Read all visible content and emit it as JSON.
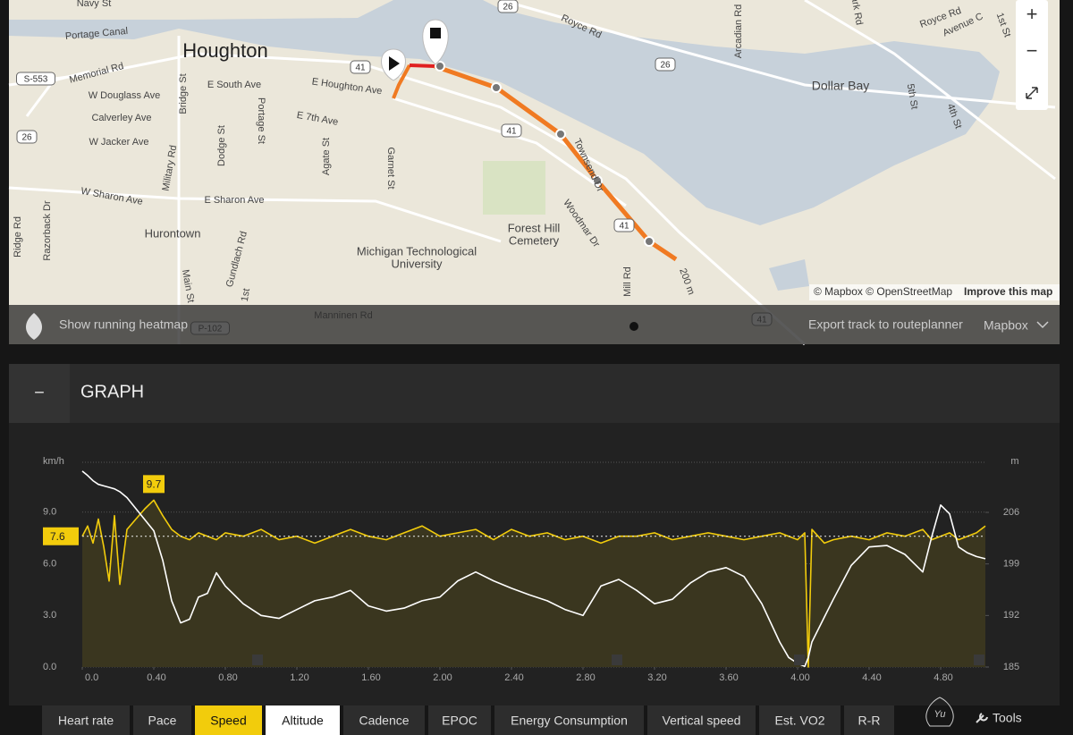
{
  "map": {
    "labels": [
      "Navy St",
      "Portage Canal",
      "Houghton",
      "Memorial Rd",
      "W Douglass Ave",
      "Calverley Ave",
      "W Jacker Ave",
      "W Sharon Ave",
      "E South Ave",
      "E Houghton Ave",
      "E 7th Ave",
      "E Sharon Ave",
      "Hurontown",
      "Military Rd",
      "Bridge St",
      "Dodge St",
      "Portage St",
      "Agate St",
      "Garnet St",
      "Gundlach Rd",
      "Main St",
      "1st",
      "Michigan Technological",
      "University",
      "Forest Hill",
      "Cemetery",
      "Manninen Rd",
      "Royce Rd",
      "Townsend Dr",
      "Woodmar Dr",
      "Mill Rd",
      "Arcadian Rd",
      "Dollar Bay",
      "5th St",
      "4th St",
      "Royce Rd",
      "Avenue C",
      "1st St",
      "Ridge Rd",
      "Razorback Dr",
      "200 m",
      "ark Rd"
    ],
    "shields": [
      "S-553",
      "26",
      "26",
      "26",
      "41",
      "41",
      "41",
      "41",
      "P-102"
    ],
    "attribution": "© Mapbox © OpenStreetMap",
    "improve": "Improve this map",
    "heatmap": "Show running heatmap",
    "export": "Export track to routeplanner",
    "provider": "Mapbox",
    "zoom_in": "+",
    "zoom_out": "−"
  },
  "graph_header": {
    "toggle": "−",
    "title": "GRAPH"
  },
  "chart_data": {
    "type": "line",
    "y_label": "km/h",
    "y2_label": "m",
    "x": [
      0,
      0.03,
      0.06,
      0.09,
      0.12,
      0.15,
      0.18,
      0.21,
      0.25,
      0.3,
      0.35,
      0.4,
      0.45,
      0.5,
      0.55,
      0.6,
      0.65,
      0.7,
      0.75,
      0.8,
      0.9,
      1.0,
      1.1,
      1.2,
      1.3,
      1.4,
      1.5,
      1.6,
      1.7,
      1.8,
      1.9,
      2.0,
      2.1,
      2.2,
      2.3,
      2.4,
      2.5,
      2.6,
      2.7,
      2.8,
      2.9,
      3.0,
      3.1,
      3.2,
      3.3,
      3.4,
      3.5,
      3.6,
      3.7,
      3.8,
      3.9,
      3.95,
      4.0,
      4.04,
      4.06,
      4.08,
      4.15,
      4.2,
      4.3,
      4.4,
      4.5,
      4.6,
      4.7,
      4.75,
      4.8,
      4.85,
      4.9,
      4.95,
      5.0,
      5.05
    ],
    "series": [
      {
        "name": "Speed",
        "color": "#f2cc0c",
        "axis": "y",
        "values": [
          7.6,
          8.2,
          7.2,
          8.6,
          7.0,
          5.0,
          8.8,
          4.8,
          8.0,
          8.6,
          9.2,
          9.7,
          8.8,
          8.0,
          7.6,
          7.4,
          7.8,
          7.6,
          7.4,
          7.8,
          7.6,
          8.0,
          7.4,
          7.6,
          7.2,
          7.6,
          8.0,
          7.6,
          7.4,
          7.8,
          8.2,
          7.6,
          7.8,
          8.0,
          7.4,
          8.0,
          7.6,
          7.8,
          7.4,
          7.6,
          7.2,
          7.6,
          7.6,
          7.8,
          7.4,
          7.6,
          7.8,
          7.6,
          7.4,
          7.6,
          7.8,
          7.6,
          7.4,
          7.8,
          0.0,
          8.0,
          7.2,
          7.4,
          7.6,
          7.4,
          7.8,
          7.6,
          8.0,
          7.4,
          7.6,
          7.8,
          7.4,
          7.6,
          7.8,
          8.2
        ]
      },
      {
        "name": "Altitude",
        "color": "#ffffff",
        "axis": "y2",
        "values": [
          211.6,
          211.0,
          210.3,
          209.8,
          209.6,
          209.4,
          209.2,
          208.8,
          208.0,
          206.5,
          205.0,
          203.5,
          199.5,
          194.0,
          191.0,
          191.5,
          194.5,
          195.0,
          197.8,
          196.0,
          193.6,
          192.0,
          191.6,
          192.8,
          194.0,
          194.5,
          195.4,
          193.3,
          192.6,
          193.0,
          194.0,
          194.5,
          196.7,
          197.9,
          196.7,
          195.7,
          194.8,
          194.0,
          192.8,
          192.0,
          196.0,
          196.9,
          195.4,
          193.6,
          194.2,
          196.4,
          197.9,
          198.5,
          197.3,
          193.6,
          188.4,
          186.3,
          185.5,
          185.1,
          186.3,
          188.4,
          191.8,
          194.2,
          198.8,
          201.3,
          201.5,
          200.3,
          197.9,
          202.7,
          207.0,
          205.8,
          201.3,
          200.5,
          200.0,
          199.7
        ]
      }
    ],
    "average": 7.6,
    "max": 9.7,
    "xlim": [
      0,
      5.05
    ],
    "xticks": [
      {
        "value": 0,
        "label": "0.0"
      },
      {
        "value": 0.4,
        "label": "0.40"
      },
      {
        "value": 0.8,
        "label": "0.80"
      },
      {
        "value": 1.2,
        "label": "1.20"
      },
      {
        "value": 1.6,
        "label": "1.60"
      },
      {
        "value": 2.0,
        "label": "2.00"
      },
      {
        "value": 2.4,
        "label": "2.40"
      },
      {
        "value": 2.8,
        "label": "2.80"
      },
      {
        "value": 3.2,
        "label": "3.20"
      },
      {
        "value": 3.6,
        "label": "3.60"
      },
      {
        "value": 4.0,
        "label": "4.00"
      },
      {
        "value": 4.4,
        "label": "4.40"
      },
      {
        "value": 4.8,
        "label": "4.80"
      }
    ],
    "ylim": [
      0,
      11.9
    ],
    "yticks": [
      {
        "value": 0,
        "label": "0.0"
      },
      {
        "value": 3,
        "label": "3.0"
      },
      {
        "value": 6,
        "label": "6.0"
      },
      {
        "value": 9,
        "label": "9.0"
      }
    ],
    "y2lim": [
      185,
      212.8
    ],
    "y2ticks": [
      185,
      192,
      199,
      206
    ],
    "grid": true
  },
  "tabs_before": [
    "Heart rate",
    "Pace"
  ],
  "tabs_after": [
    "Cadence",
    "EPOC",
    "Energy Consumption",
    "Vertical speed",
    "Est. VO2",
    "R-R"
  ],
  "tools": "Tools",
  "logo": "Yu"
}
